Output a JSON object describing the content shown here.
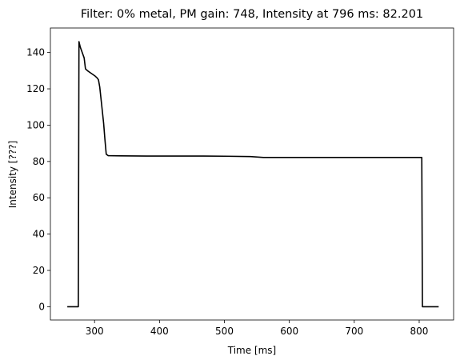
{
  "chart_data": {
    "type": "line",
    "title": "Filter: 0% metal, PM gain: 748, Intensity at 796 ms: 82.201",
    "xlabel": "Time [ms]",
    "ylabel": "Intensity [???]",
    "xlim": [
      232,
      853
    ],
    "ylim": [
      -7.3,
      153.5
    ],
    "xticks": [
      300,
      400,
      500,
      600,
      700,
      800
    ],
    "yticks": [
      0,
      20,
      40,
      60,
      80,
      100,
      120,
      140
    ],
    "grid": false,
    "series": [
      {
        "color": "#000000",
        "points": [
          [
            258,
            0
          ],
          [
            275,
            0
          ],
          [
            276,
            146
          ],
          [
            278,
            143
          ],
          [
            281,
            140
          ],
          [
            284,
            137
          ],
          [
            286,
            131
          ],
          [
            289,
            130
          ],
          [
            293,
            129
          ],
          [
            297,
            128
          ],
          [
            301,
            127
          ],
          [
            304,
            126
          ],
          [
            306,
            125
          ],
          [
            308,
            121
          ],
          [
            311,
            111
          ],
          [
            314,
            101
          ],
          [
            316,
            92
          ],
          [
            318,
            84
          ],
          [
            321,
            83.2
          ],
          [
            340,
            83.1
          ],
          [
            380,
            83.0
          ],
          [
            400,
            83.0
          ],
          [
            450,
            83.0
          ],
          [
            500,
            82.9
          ],
          [
            540,
            82.7
          ],
          [
            560,
            82.2
          ],
          [
            600,
            82.2
          ],
          [
            650,
            82.2
          ],
          [
            700,
            82.2
          ],
          [
            750,
            82.2
          ],
          [
            796,
            82.201
          ],
          [
            804,
            82.2
          ],
          [
            805,
            0
          ],
          [
            830,
            0
          ]
        ]
      }
    ]
  }
}
